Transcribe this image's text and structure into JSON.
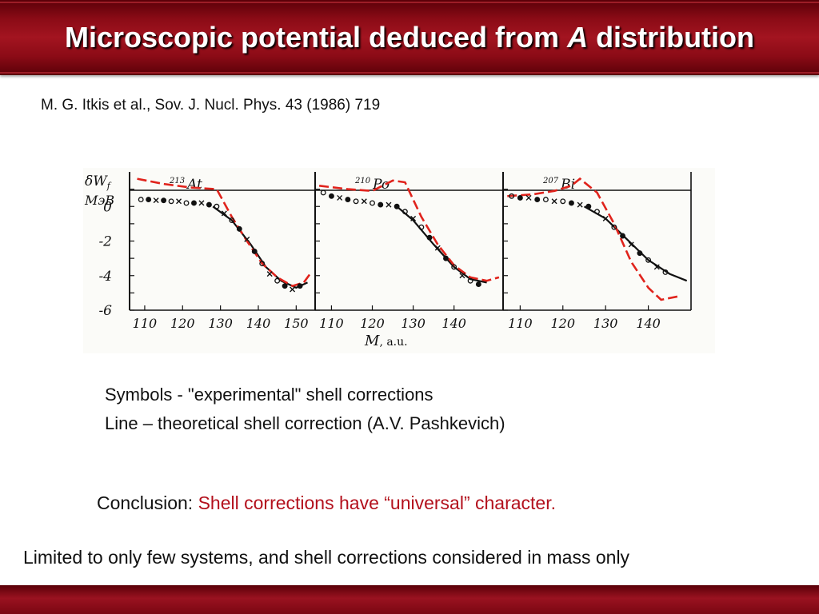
{
  "header": {
    "title_before": "Microscopic potential deduced from ",
    "title_italic": "A",
    "title_after": " distribution"
  },
  "citation": "M. G. Itkis et al., Sov. J. Nucl. Phys. 43 (1986) 719",
  "legend": {
    "symbols": "Symbols  - \"experimental\" shell corrections",
    "line": "Line – theoretical shell correction (A.V. Pashkevich)"
  },
  "conclusion": {
    "label": "Conclusion: ",
    "text": "Shell corrections have “universal” character."
  },
  "limited": "Limited to only few systems, and shell corrections considered in mass only",
  "colors": {
    "theory_line": "#e0231c",
    "header": "#8b0b16",
    "conclusion_red": "#b3101c"
  },
  "chart_data": {
    "type": "scatter",
    "ylabel_line1": "δW",
    "ylabel_line1_sub": "f",
    "ylabel_line2": "МэВ",
    "xlabel_main": "M",
    "xlabel_unit": ", a.u.",
    "y_ticks": [
      "0",
      "-2",
      "-4",
      "-6"
    ],
    "ylim": [
      -6,
      2
    ],
    "panels": [
      {
        "mass": "213",
        "element": "At",
        "x_ticks": [
          "110",
          "120",
          "130",
          "140",
          "150"
        ],
        "xlim": [
          106,
          155
        ],
        "experimental": [
          {
            "x": 109,
            "y": 0.4
          },
          {
            "x": 111,
            "y": 0.4
          },
          {
            "x": 113,
            "y": 0.35
          },
          {
            "x": 115,
            "y": 0.35
          },
          {
            "x": 117,
            "y": 0.3
          },
          {
            "x": 119,
            "y": 0.3
          },
          {
            "x": 121,
            "y": 0.2
          },
          {
            "x": 123,
            "y": 0.2
          },
          {
            "x": 125,
            "y": 0.2
          },
          {
            "x": 127,
            "y": 0.1
          },
          {
            "x": 129,
            "y": 0.0
          },
          {
            "x": 131,
            "y": -0.4
          },
          {
            "x": 133,
            "y": -0.8
          },
          {
            "x": 135,
            "y": -1.3
          },
          {
            "x": 137,
            "y": -1.9
          },
          {
            "x": 139,
            "y": -2.6
          },
          {
            "x": 141,
            "y": -3.3
          },
          {
            "x": 143,
            "y": -3.9
          },
          {
            "x": 145,
            "y": -4.3
          },
          {
            "x": 147,
            "y": -4.6
          },
          {
            "x": 149,
            "y": -4.8
          },
          {
            "x": 151,
            "y": -4.6
          }
        ],
        "theory_dashed": [
          {
            "x": 108,
            "y": 1.6
          },
          {
            "x": 115,
            "y": 1.3
          },
          {
            "x": 122,
            "y": 1.1
          },
          {
            "x": 129,
            "y": 1.0
          },
          {
            "x": 133,
            "y": -0.6
          },
          {
            "x": 137,
            "y": -2.0
          },
          {
            "x": 141,
            "y": -3.3
          },
          {
            "x": 145,
            "y": -4.1
          },
          {
            "x": 149,
            "y": -4.6
          },
          {
            "x": 152,
            "y": -4.4
          },
          {
            "x": 154,
            "y": -3.8
          }
        ],
        "theory_solid": [
          {
            "x": 128,
            "y": 0.0
          },
          {
            "x": 133,
            "y": -0.8
          },
          {
            "x": 138,
            "y": -2.2
          },
          {
            "x": 142,
            "y": -3.5
          },
          {
            "x": 146,
            "y": -4.3
          },
          {
            "x": 150,
            "y": -4.7
          },
          {
            "x": 153,
            "y": -4.4
          }
        ]
      },
      {
        "mass": "210",
        "element": "Po",
        "x_ticks": [
          "110",
          "120",
          "130",
          "140"
        ],
        "xlim": [
          106,
          152
        ],
        "experimental": [
          {
            "x": 108,
            "y": 0.8
          },
          {
            "x": 110,
            "y": 0.6
          },
          {
            "x": 112,
            "y": 0.5
          },
          {
            "x": 114,
            "y": 0.4
          },
          {
            "x": 116,
            "y": 0.3
          },
          {
            "x": 118,
            "y": 0.3
          },
          {
            "x": 120,
            "y": 0.2
          },
          {
            "x": 122,
            "y": 0.1
          },
          {
            "x": 124,
            "y": 0.1
          },
          {
            "x": 126,
            "y": 0.0
          },
          {
            "x": 128,
            "y": -0.3
          },
          {
            "x": 130,
            "y": -0.7
          },
          {
            "x": 132,
            "y": -1.2
          },
          {
            "x": 134,
            "y": -1.8
          },
          {
            "x": 136,
            "y": -2.4
          },
          {
            "x": 138,
            "y": -3.0
          },
          {
            "x": 140,
            "y": -3.5
          },
          {
            "x": 142,
            "y": -4.0
          },
          {
            "x": 144,
            "y": -4.3
          },
          {
            "x": 146,
            "y": -4.5
          }
        ],
        "theory_dashed": [
          {
            "x": 107,
            "y": 1.2
          },
          {
            "x": 114,
            "y": 1.0
          },
          {
            "x": 120,
            "y": 0.9
          },
          {
            "x": 125,
            "y": 1.5
          },
          {
            "x": 128,
            "y": 1.4
          },
          {
            "x": 132,
            "y": -0.6
          },
          {
            "x": 136,
            "y": -2.2
          },
          {
            "x": 140,
            "y": -3.4
          },
          {
            "x": 144,
            "y": -4.1
          },
          {
            "x": 148,
            "y": -4.3
          },
          {
            "x": 151,
            "y": -4.1
          }
        ],
        "theory_solid": [
          {
            "x": 126,
            "y": 0.0
          },
          {
            "x": 130,
            "y": -0.8
          },
          {
            "x": 135,
            "y": -2.2
          },
          {
            "x": 140,
            "y": -3.5
          },
          {
            "x": 144,
            "y": -4.2
          },
          {
            "x": 148,
            "y": -4.4
          }
        ]
      },
      {
        "mass": "207",
        "element": "Bi",
        "x_ticks": [
          "110",
          "120",
          "130",
          "140"
        ],
        "xlim": [
          106,
          150
        ],
        "experimental": [
          {
            "x": 108,
            "y": 0.6
          },
          {
            "x": 110,
            "y": 0.5
          },
          {
            "x": 112,
            "y": 0.5
          },
          {
            "x": 114,
            "y": 0.4
          },
          {
            "x": 116,
            "y": 0.4
          },
          {
            "x": 118,
            "y": 0.3
          },
          {
            "x": 120,
            "y": 0.3
          },
          {
            "x": 122,
            "y": 0.2
          },
          {
            "x": 124,
            "y": 0.1
          },
          {
            "x": 126,
            "y": 0.0
          },
          {
            "x": 128,
            "y": -0.3
          },
          {
            "x": 130,
            "y": -0.7
          },
          {
            "x": 132,
            "y": -1.2
          },
          {
            "x": 134,
            "y": -1.7
          },
          {
            "x": 136,
            "y": -2.2
          },
          {
            "x": 138,
            "y": -2.7
          },
          {
            "x": 140,
            "y": -3.1
          },
          {
            "x": 142,
            "y": -3.5
          },
          {
            "x": 144,
            "y": -3.8
          }
        ],
        "theory_dashed": [
          {
            "x": 107,
            "y": 0.6
          },
          {
            "x": 113,
            "y": 0.7
          },
          {
            "x": 118,
            "y": 0.9
          },
          {
            "x": 122,
            "y": 1.2
          },
          {
            "x": 124,
            "y": 1.6
          },
          {
            "x": 128,
            "y": 0.8
          },
          {
            "x": 132,
            "y": -1.0
          },
          {
            "x": 136,
            "y": -3.2
          },
          {
            "x": 140,
            "y": -4.7
          },
          {
            "x": 143,
            "y": -5.4
          },
          {
            "x": 147,
            "y": -5.2
          }
        ],
        "theory_solid": [
          {
            "x": 125,
            "y": 0.0
          },
          {
            "x": 130,
            "y": -0.7
          },
          {
            "x": 135,
            "y": -1.9
          },
          {
            "x": 140,
            "y": -3.1
          },
          {
            "x": 145,
            "y": -3.9
          },
          {
            "x": 149,
            "y": -4.3
          }
        ]
      }
    ]
  }
}
